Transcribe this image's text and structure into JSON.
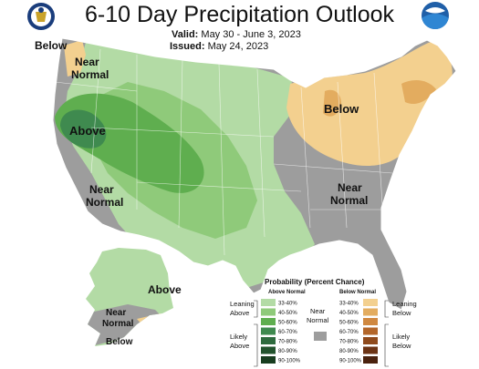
{
  "header": {
    "title": "6-10 Day Precipitation Outlook",
    "valid_label": "Valid:",
    "valid_value": "May 30 - June 3, 2023",
    "issued_label": "Issued:",
    "issued_value": "May 24, 2023"
  },
  "logos": {
    "left": "noaa-commerce-seal",
    "right": "noaa-logo"
  },
  "map_labels": {
    "below_nw": "Below",
    "near_normal_nw_1": "Near",
    "near_normal_nw_2": "Normal",
    "above_west": "Above",
    "near_normal_sw_1": "Near",
    "near_normal_sw_2": "Normal",
    "below_great_lakes": "Below",
    "near_normal_se_1": "Near",
    "near_normal_se_2": "Normal",
    "above_alaska": "Above",
    "near_normal_ak_1": "Near",
    "near_normal_ak_2": "Normal",
    "below_ak": "Below"
  },
  "legend": {
    "title": "Probability (Percent Chance)",
    "above_header": "Above Normal",
    "below_header": "Below Normal",
    "near_normal_1": "Near",
    "near_normal_2": "Normal",
    "leaning_above_1": "Leaning",
    "leaning_above_2": "Above",
    "likely_above_1": "Likely",
    "likely_above_2": "Above",
    "leaning_below_1": "Leaning",
    "leaning_below_2": "Below",
    "likely_below_1": "Likely",
    "likely_below_2": "Below",
    "ranges": [
      "33-40%",
      "40-50%",
      "50-60%",
      "60-70%",
      "70-80%",
      "80-90%",
      "90-100%"
    ],
    "above_colors": [
      "#b3dba5",
      "#8fca7a",
      "#5fae4f",
      "#3f8a4f",
      "#2e6b3e",
      "#22532d",
      "#183d1f"
    ],
    "below_colors": [
      "#f3d08f",
      "#e3ac5f",
      "#d08840",
      "#b3662a",
      "#8f4a1c",
      "#6c3314",
      "#4a220e"
    ],
    "near_color": "#9d9d9d"
  }
}
